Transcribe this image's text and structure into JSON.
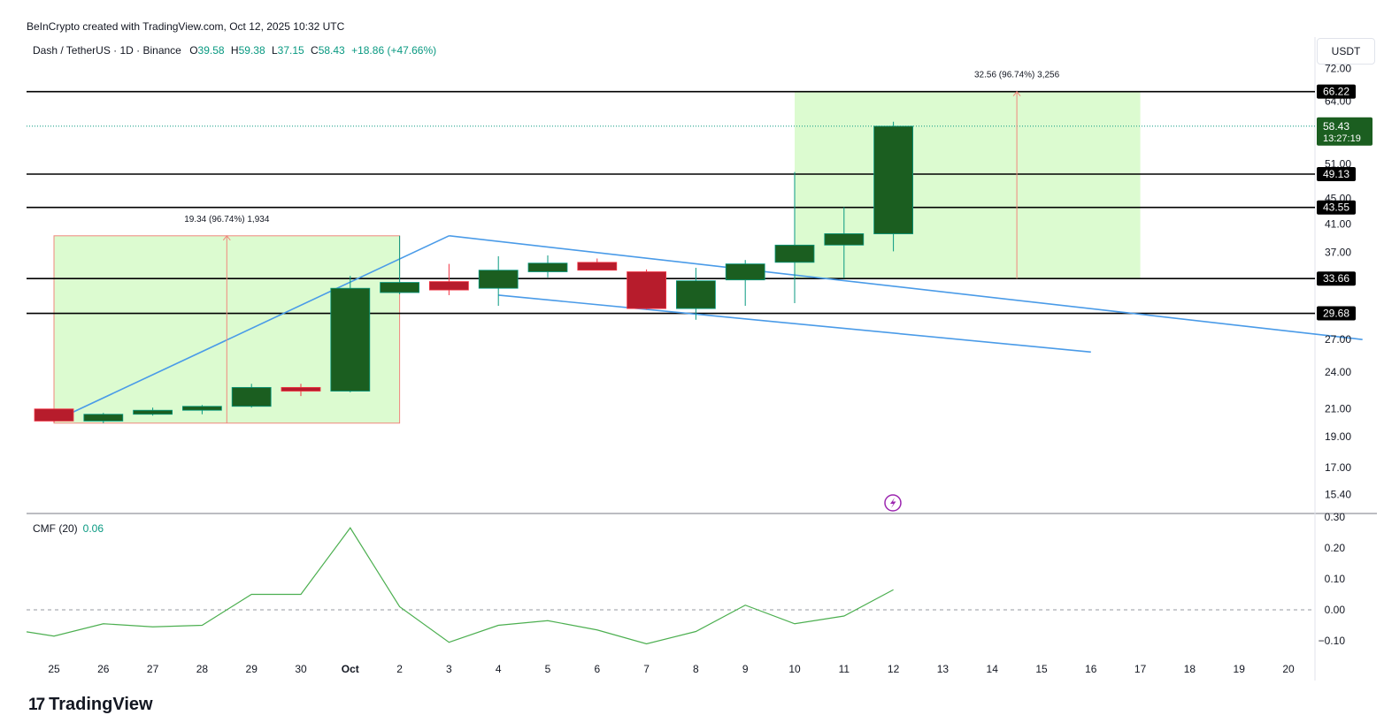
{
  "header": {
    "credit": "BeInCrypto created with TradingView.com, Oct 12, 2025 10:32 UTC",
    "symbol": "Dash / TetherUS · 1D · Binance",
    "ohlc": {
      "o_label": "O",
      "o": "39.58",
      "h_label": "H",
      "h": "59.38",
      "l_label": "L",
      "l": "37.15",
      "c_label": "C",
      "c": "58.43",
      "change": "+18.86 (+47.66%)"
    },
    "currency": "USDT"
  },
  "colors": {
    "up": "#1b5e20",
    "down": "#b71c2c",
    "zone_fill": "#dcfbd0",
    "trendline": "#4a9be8",
    "target_arrow": "#f0877d",
    "level_line": "#000000",
    "cmf_line": "#4caf50",
    "price_badge": "#1b5e20"
  },
  "chart_data": [
    {
      "type": "candlestick",
      "title": "Dash / TetherUS · 1D · Binance",
      "x_ticks": [
        "25",
        "26",
        "27",
        "28",
        "29",
        "30",
        "Oct",
        "2",
        "3",
        "4",
        "5",
        "6",
        "7",
        "8",
        "9",
        "10",
        "11",
        "12",
        "13",
        "14",
        "15",
        "16",
        "17",
        "18",
        "19",
        "20"
      ],
      "y_ticks": [
        "72.00",
        "64.00",
        "51.00",
        "45.00",
        "41.00",
        "37.00",
        "27.00",
        "24.00",
        "21.00",
        "19.00",
        "17.00",
        "15.40"
      ],
      "y_scale": "log",
      "ylim": [
        14.5,
        74
      ],
      "candles": [
        {
          "date": "25",
          "o": 21.0,
          "h": 21.0,
          "l": 20.0,
          "c": 20.1
        },
        {
          "date": "26",
          "o": 20.1,
          "h": 20.7,
          "l": 19.95,
          "c": 20.6
        },
        {
          "date": "27",
          "o": 20.6,
          "h": 21.1,
          "l": 20.5,
          "c": 20.9
        },
        {
          "date": "28",
          "o": 20.9,
          "h": 21.3,
          "l": 20.6,
          "c": 21.2
        },
        {
          "date": "29",
          "o": 21.2,
          "h": 23.0,
          "l": 21.1,
          "c": 22.7
        },
        {
          "date": "30",
          "o": 22.7,
          "h": 23.0,
          "l": 22.0,
          "c": 22.4
        },
        {
          "date": "Oct",
          "o": 22.4,
          "h": 34.0,
          "l": 22.3,
          "c": 32.5
        },
        {
          "date": "2",
          "o": 32.0,
          "h": 39.3,
          "l": 31.8,
          "c": 33.2
        },
        {
          "date": "3",
          "o": 33.3,
          "h": 35.5,
          "l": 31.7,
          "c": 32.3
        },
        {
          "date": "4",
          "o": 32.5,
          "h": 36.5,
          "l": 30.5,
          "c": 34.7
        },
        {
          "date": "5",
          "o": 34.5,
          "h": 36.6,
          "l": 33.8,
          "c": 35.6
        },
        {
          "date": "6",
          "o": 35.7,
          "h": 36.2,
          "l": 34.7,
          "c": 34.7
        },
        {
          "date": "7",
          "o": 34.5,
          "h": 34.8,
          "l": 30.1,
          "c": 30.2
        },
        {
          "date": "8",
          "o": 30.2,
          "h": 35.0,
          "l": 29.0,
          "c": 33.4
        },
        {
          "date": "9",
          "o": 33.5,
          "h": 36.0,
          "l": 30.5,
          "c": 35.5
        },
        {
          "date": "10",
          "o": 35.7,
          "h": 49.5,
          "l": 30.8,
          "c": 38.0
        },
        {
          "date": "11",
          "o": 38.0,
          "h": 43.6,
          "l": 33.7,
          "c": 39.6
        },
        {
          "date": "12",
          "o": 39.58,
          "h": 59.38,
          "l": 37.15,
          "c": 58.43
        }
      ],
      "levels": [
        "66.22",
        "49.13",
        "43.55",
        "33.66",
        "29.68"
      ],
      "last_price": {
        "value": "58.43",
        "countdown": "13:27:19"
      },
      "annotations": [
        {
          "text": "19.34 (96.74%) 1,934"
        },
        {
          "text": "32.56 (96.74%) 3,256"
        }
      ],
      "zones": [
        {
          "x_from": "25",
          "x_to": "2",
          "y_from": 19.95,
          "y_to": 39.3
        },
        {
          "x_from": "10",
          "x_to": "17",
          "y_from": 33.66,
          "y_to": 66.22
        }
      ],
      "trendlines": [
        {
          "x1": 25,
          "y1": 20.1,
          "x2": 2,
          "y2": 39.3
        },
        {
          "x1": 2,
          "y1": 39.3,
          "x2": 20.5,
          "y2": 27.0
        },
        {
          "x1": 3,
          "y1": 31.7,
          "x2": 15,
          "y2": 25.8
        }
      ],
      "targets": [
        {
          "x": 28.5,
          "from": 19.95,
          "to": 39.3
        },
        {
          "x": 13.5,
          "from": 33.66,
          "to": 66.22
        }
      ]
    },
    {
      "type": "line",
      "title": "CMF (20)",
      "current": "0.06",
      "y_ticks": [
        "0.30",
        "0.20",
        "0.10",
        "0.00",
        "−0.10"
      ],
      "ylim": [
        -0.15,
        0.3
      ],
      "series": [
        {
          "x": [
            "24",
            "25",
            "26",
            "27",
            "28",
            "29",
            "30",
            "Oct",
            "2",
            "3",
            "4",
            "5",
            "6",
            "7",
            "8",
            "9",
            "10",
            "11",
            "12"
          ],
          "values": [
            -0.06,
            -0.085,
            -0.045,
            -0.055,
            -0.05,
            0.05,
            0.05,
            0.265,
            0.01,
            -0.105,
            -0.05,
            -0.035,
            -0.065,
            -0.11,
            -0.07,
            0.015,
            -0.045,
            -0.02,
            0.065
          ]
        }
      ]
    }
  ],
  "footer": {
    "brand": "TradingView",
    "logo": "17"
  }
}
